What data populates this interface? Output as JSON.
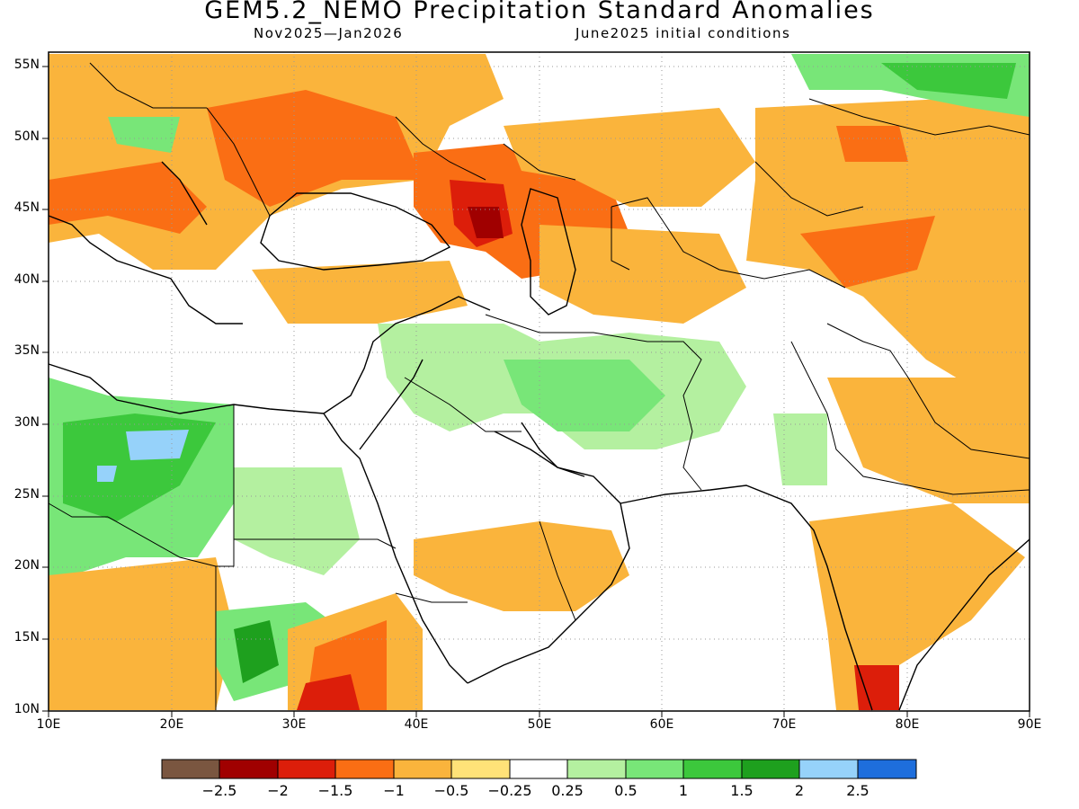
{
  "title": "GEM5.2_NEMO Precipitation Standard Anomalies",
  "subtitle_left": "Nov2025—Jan2026",
  "subtitle_right": "June2025 initial conditions",
  "map": {
    "lon_range": [
      10,
      90
    ],
    "lat_range": [
      10,
      56
    ],
    "lon_labels": [
      "10E",
      "20E",
      "30E",
      "40E",
      "50E",
      "60E",
      "70E",
      "80E",
      "90E"
    ],
    "lat_labels": [
      "10N",
      "15N",
      "20N",
      "25N",
      "30N",
      "35N",
      "40N",
      "45N",
      "50N",
      "55N"
    ],
    "grid": "dotted"
  },
  "colorbar": {
    "colors": [
      "#7a5640",
      "#a00000",
      "#dc1e0a",
      "#fa6e14",
      "#fab43c",
      "#ffe278",
      "#ffffff",
      "#b4f0a0",
      "#78e678",
      "#3cc83c",
      "#1ea01e",
      "#96d2fa",
      "#1e6edc"
    ],
    "labels": [
      "−2.5",
      "−2",
      "−1.5",
      "−1",
      "−0.5",
      "−0.25",
      "0.25",
      "0.5",
      "1",
      "1.5",
      "2",
      "2.5"
    ]
  }
}
